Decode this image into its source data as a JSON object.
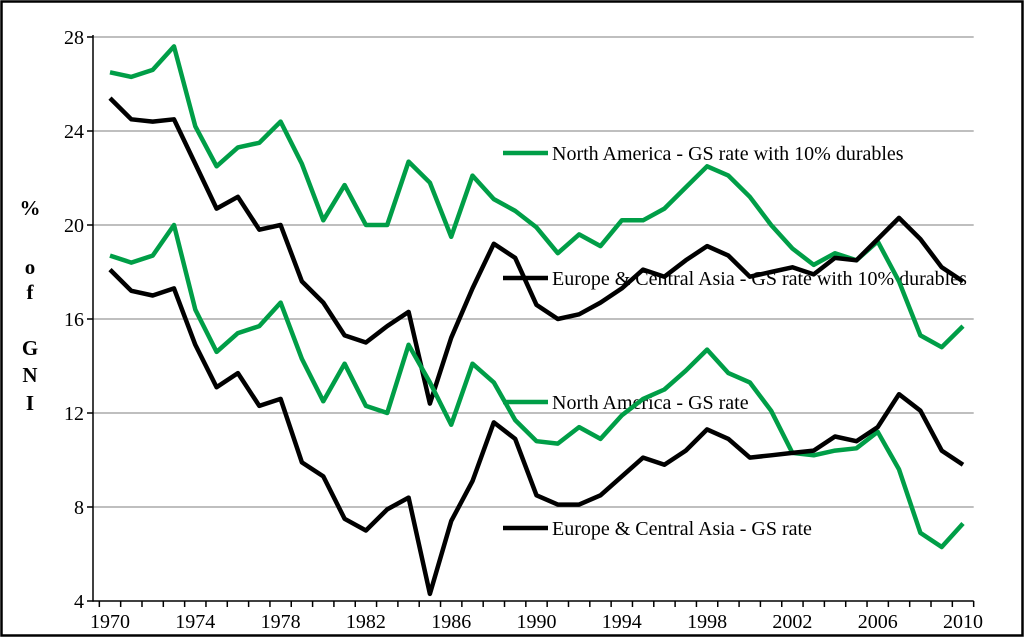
{
  "chart_data": {
    "type": "line",
    "title": "",
    "ylabel": "% of GNI",
    "ylabel_stack": [
      "%",
      "o",
      "f",
      "G",
      "N",
      "I"
    ],
    "ylim": [
      4,
      28
    ],
    "yticks": [
      4,
      8,
      12,
      16,
      20,
      24,
      28
    ],
    "xticks": [
      1970,
      1974,
      1978,
      1982,
      1986,
      1990,
      1994,
      1998,
      2002,
      2006,
      2010
    ],
    "grid": "horizontal",
    "legend_position": "inline-right",
    "palette": {
      "green": "#009E47",
      "black": "#000000",
      "gridline": "#999999",
      "axis": "#000000",
      "border": "#000000",
      "background": "#ffffff"
    },
    "x": [
      1970,
      1971,
      1972,
      1973,
      1974,
      1975,
      1976,
      1977,
      1978,
      1979,
      1980,
      1981,
      1982,
      1983,
      1984,
      1985,
      1986,
      1987,
      1988,
      1989,
      1990,
      1991,
      1992,
      1993,
      1994,
      1995,
      1996,
      1997,
      1998,
      1999,
      2000,
      2001,
      2002,
      2003,
      2004,
      2005,
      2006,
      2007,
      2008,
      2009,
      2010
    ],
    "series": [
      {
        "name": "North America - GS rate with 10% durables",
        "color": "#009E47",
        "values": [
          26.5,
          26.3,
          26.6,
          27.6,
          24.2,
          22.5,
          23.3,
          23.5,
          24.4,
          22.6,
          20.2,
          21.7,
          20.0,
          20.0,
          22.7,
          21.8,
          19.5,
          22.1,
          21.1,
          20.6,
          19.9,
          18.8,
          19.6,
          19.1,
          20.2,
          20.2,
          20.7,
          21.6,
          22.5,
          22.1,
          21.2,
          20.0,
          19.0,
          18.3,
          18.8,
          18.5,
          19.3,
          17.6,
          15.3,
          14.8,
          15.7
        ]
      },
      {
        "name": "Europe & Central Asia - GS rate with 10% durables",
        "color": "#000000",
        "values": [
          25.4,
          24.5,
          24.4,
          24.5,
          22.6,
          20.7,
          21.2,
          19.8,
          20.0,
          17.6,
          16.7,
          15.3,
          15.0,
          15.7,
          16.3,
          12.4,
          15.2,
          17.3,
          19.2,
          18.6,
          16.6,
          16.0,
          16.2,
          16.7,
          17.3,
          18.1,
          17.8,
          18.5,
          19.1,
          18.7,
          17.8,
          18.0,
          18.2,
          17.9,
          18.6,
          18.5,
          19.4,
          20.3,
          19.4,
          18.2,
          17.6
        ]
      },
      {
        "name": "North America - GS rate",
        "color": "#009E47",
        "values": [
          18.7,
          18.4,
          18.7,
          20.0,
          16.4,
          14.6,
          15.4,
          15.7,
          16.7,
          14.3,
          12.5,
          14.1,
          12.3,
          12.0,
          14.9,
          13.3,
          11.5,
          14.1,
          13.3,
          11.7,
          10.8,
          10.7,
          11.4,
          10.9,
          11.9,
          12.6,
          13.0,
          13.8,
          14.7,
          13.7,
          13.3,
          12.1,
          10.3,
          10.2,
          10.4,
          10.5,
          11.2,
          9.6,
          6.9,
          6.3,
          7.3
        ]
      },
      {
        "name": "Europe & Central Asia - GS rate",
        "color": "#000000",
        "values": [
          18.1,
          17.2,
          17.0,
          17.3,
          14.9,
          13.1,
          13.7,
          12.3,
          12.6,
          9.9,
          9.3,
          7.5,
          7.0,
          7.9,
          8.4,
          4.3,
          7.4,
          9.1,
          11.6,
          10.9,
          8.5,
          8.1,
          8.1,
          8.5,
          9.3,
          10.1,
          9.8,
          10.4,
          11.3,
          10.9,
          10.1,
          10.2,
          10.3,
          10.4,
          11.0,
          10.8,
          11.4,
          12.8,
          12.1,
          10.4,
          9.8
        ]
      }
    ]
  }
}
